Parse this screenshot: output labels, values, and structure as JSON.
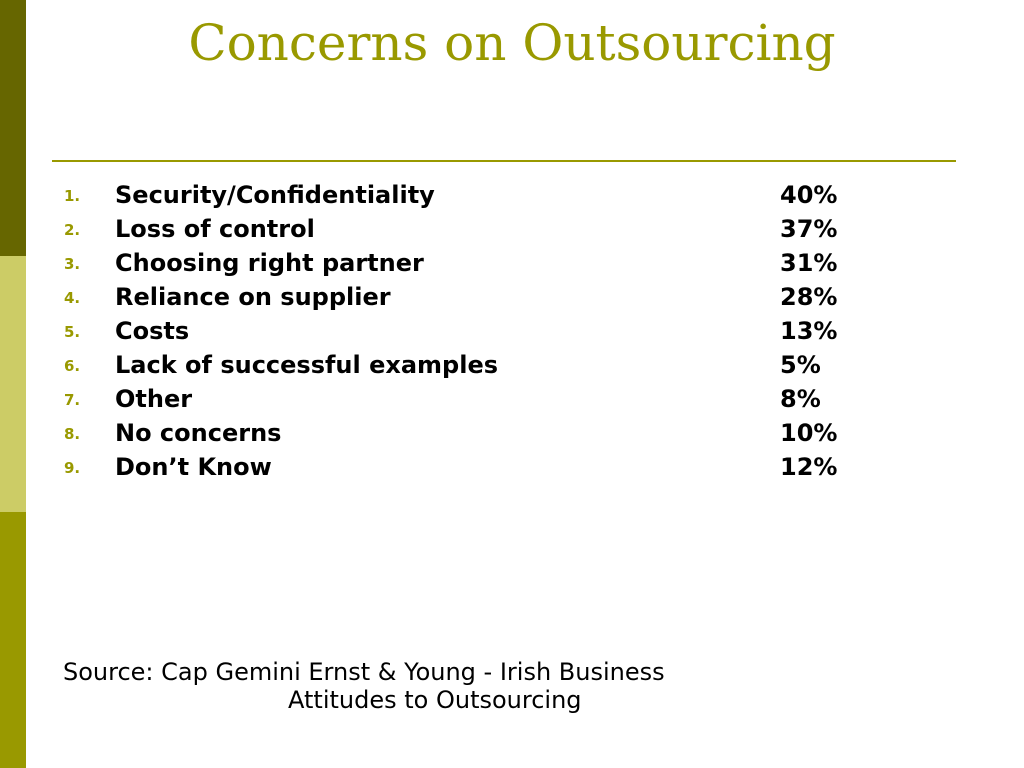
{
  "title": "Concerns on Outsourcing",
  "concerns": [
    {
      "num": "1.",
      "label": "Security/Confidentiality",
      "pct": "40%"
    },
    {
      "num": "2.",
      "label": "Loss of control",
      "pct": "37%"
    },
    {
      "num": "3.",
      "label": "Choosing right partner",
      "pct": "31%"
    },
    {
      "num": "4.",
      "label": "Reliance on supplier",
      "pct": "28%"
    },
    {
      "num": "5.",
      "label": "Costs",
      "pct": "13%"
    },
    {
      "num": "6.",
      "label": "Lack of successful examples",
      "pct": "5%"
    },
    {
      "num": "7.",
      "label": "Other",
      "pct": "8%"
    },
    {
      "num": "8.",
      "label": "No concerns",
      "pct": "10%"
    },
    {
      "num": "9.",
      "label": "Don’t Know",
      "pct": "12%"
    }
  ],
  "source": {
    "line1": "Source: Cap Gemini Ernst & Young - Irish Business",
    "line2": "Attitudes to Outsourcing"
  },
  "colors": {
    "accent": "#999900",
    "sidebar_dark": "#666600",
    "sidebar_light": "#cccc66",
    "sidebar_mid": "#999900"
  }
}
